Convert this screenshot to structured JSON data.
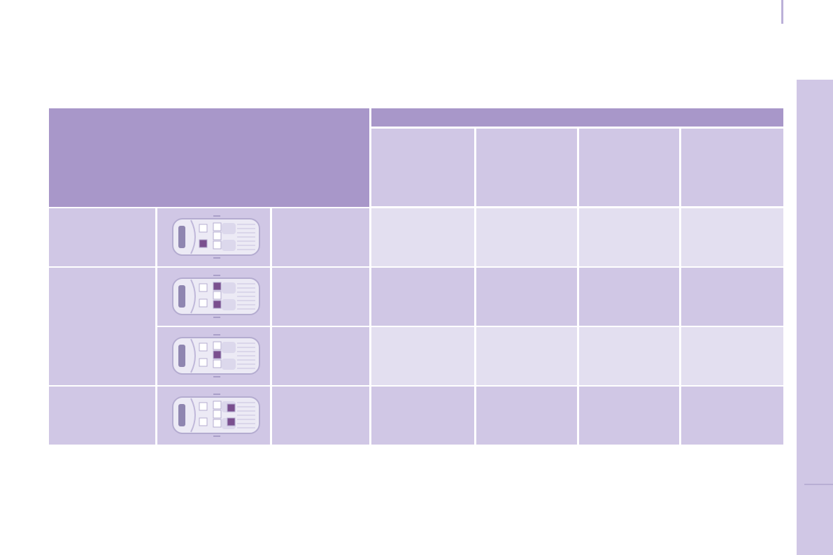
{
  "colors": {
    "header": "#a897c9",
    "cell": "#d0c7e5",
    "cell_alt": "#e3dff0",
    "seat_highlight": "#7a4f8e"
  },
  "table": {
    "rows": [
      {
        "seat_icon": "car-top-view-icon",
        "highlighted_seats": [
          "front-passenger"
        ]
      },
      {
        "seat_icon": "car-top-view-icon",
        "highlighted_seats": [
          "row2-left",
          "row2-right"
        ]
      },
      {
        "seat_icon": "car-top-view-icon",
        "highlighted_seats": [
          "row2-center"
        ]
      },
      {
        "seat_icon": "car-top-view-icon",
        "highlighted_seats": [
          "row3-left",
          "row3-right"
        ]
      }
    ]
  }
}
